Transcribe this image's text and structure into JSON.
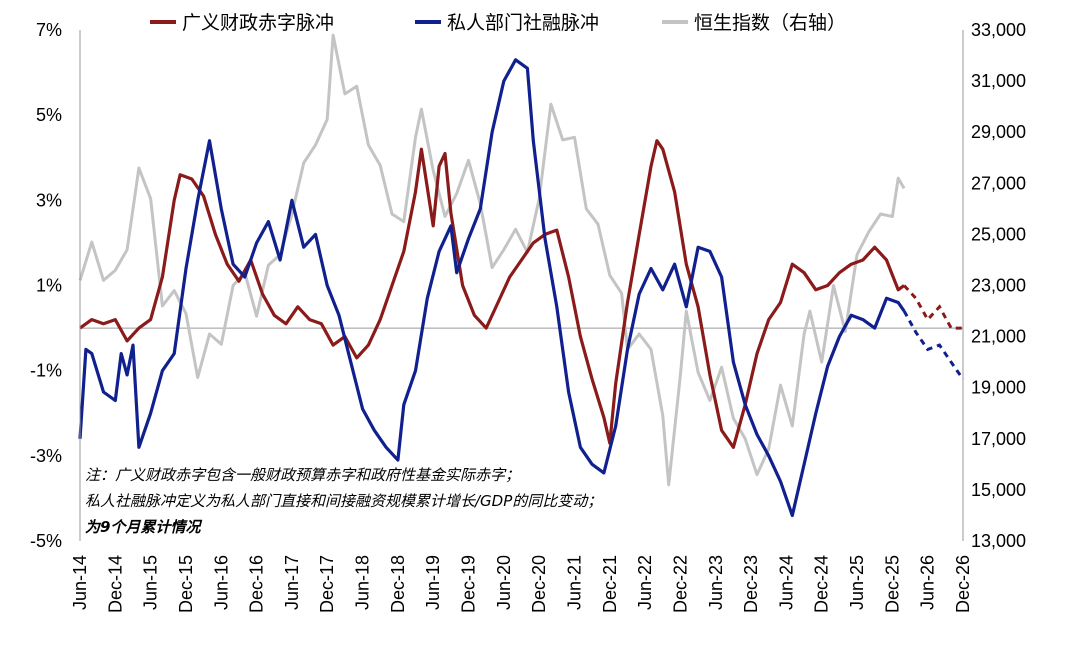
{
  "chart_data": {
    "type": "line",
    "legend": [
      {
        "name": "广义财政赤字脉冲",
        "color": "#8b1a1a"
      },
      {
        "name": "私人部门社融脉冲",
        "color": "#10208e"
      },
      {
        "name": "恒生指数（右轴）",
        "color": "#c4c4c4"
      }
    ],
    "y_left": {
      "min": -5,
      "max": 7,
      "ticks": [
        "7%",
        "5%",
        "3%",
        "1%",
        "-1%",
        "-3%",
        "-5%"
      ],
      "tick_values": [
        7,
        5,
        3,
        1,
        -1,
        -3,
        -5
      ]
    },
    "y_right": {
      "min": 13000,
      "max": 33000,
      "ticks": [
        "33,000",
        "31,000",
        "29,000",
        "27,000",
        "25,000",
        "23,000",
        "21,000",
        "19,000",
        "17,000",
        "15,000",
        "13,000"
      ],
      "tick_values": [
        33000,
        31000,
        29000,
        27000,
        25000,
        23000,
        21000,
        19000,
        17000,
        15000,
        13000
      ]
    },
    "x_labels": [
      "Jun-14",
      "Dec-14",
      "Jun-15",
      "Dec-15",
      "Jun-16",
      "Dec-16",
      "Jun-17",
      "Dec-17",
      "Jun-18",
      "Dec-18",
      "Jun-19",
      "Dec-19",
      "Jun-20",
      "Dec-20",
      "Jun-21",
      "Dec-21",
      "Jun-22",
      "Dec-22",
      "Jun-23",
      "Dec-23",
      "Jun-24",
      "Dec-24",
      "Jun-25",
      "Dec-25",
      "Jun-26",
      "Dec-26"
    ],
    "x_start": "2014-06",
    "series": [
      {
        "name": "广义财政赤字脉冲",
        "color": "#8b1a1a",
        "axis": "left",
        "points": [
          [
            "2014-06",
            0.0
          ],
          [
            "2014-08",
            0.2
          ],
          [
            "2014-10",
            0.1
          ],
          [
            "2014-12",
            0.2
          ],
          [
            "2015-02",
            -0.3
          ],
          [
            "2015-04",
            0.0
          ],
          [
            "2015-06",
            0.2
          ],
          [
            "2015-08",
            1.2
          ],
          [
            "2015-10",
            3.0
          ],
          [
            "2015-11",
            3.6
          ],
          [
            "2016-01",
            3.5
          ],
          [
            "2016-03",
            3.1
          ],
          [
            "2016-05",
            2.2
          ],
          [
            "2016-07",
            1.5
          ],
          [
            "2016-09",
            1.1
          ],
          [
            "2016-11",
            1.6
          ],
          [
            "2017-01",
            0.8
          ],
          [
            "2017-03",
            0.3
          ],
          [
            "2017-05",
            0.1
          ],
          [
            "2017-07",
            0.5
          ],
          [
            "2017-09",
            0.2
          ],
          [
            "2017-11",
            0.1
          ],
          [
            "2018-01",
            -0.4
          ],
          [
            "2018-03",
            -0.2
          ],
          [
            "2018-05",
            -0.7
          ],
          [
            "2018-07",
            -0.4
          ],
          [
            "2018-09",
            0.2
          ],
          [
            "2018-11",
            1.0
          ],
          [
            "2019-01",
            1.8
          ],
          [
            "2019-03",
            3.2
          ],
          [
            "2019-04",
            4.2
          ],
          [
            "2019-06",
            2.4
          ],
          [
            "2019-07",
            3.8
          ],
          [
            "2019-08",
            4.1
          ],
          [
            "2019-09",
            2.7
          ],
          [
            "2019-11",
            1.0
          ],
          [
            "2020-01",
            0.3
          ],
          [
            "2020-03",
            0.0
          ],
          [
            "2020-05",
            0.6
          ],
          [
            "2020-07",
            1.2
          ],
          [
            "2020-09",
            1.6
          ],
          [
            "2020-11",
            2.0
          ],
          [
            "2021-01",
            2.2
          ],
          [
            "2021-03",
            2.3
          ],
          [
            "2021-05",
            1.2
          ],
          [
            "2021-07",
            -0.2
          ],
          [
            "2021-09",
            -1.2
          ],
          [
            "2021-11",
            -2.1
          ],
          [
            "2021-12",
            -2.7
          ],
          [
            "2022-01",
            -1.3
          ],
          [
            "2022-03",
            0.6
          ],
          [
            "2022-05",
            2.2
          ],
          [
            "2022-07",
            3.8
          ],
          [
            "2022-08",
            4.4
          ],
          [
            "2022-09",
            4.2
          ],
          [
            "2022-11",
            3.2
          ],
          [
            "2023-01",
            1.5
          ],
          [
            "2023-03",
            0.5
          ],
          [
            "2023-05",
            -1.1
          ],
          [
            "2023-07",
            -2.4
          ],
          [
            "2023-09",
            -2.8
          ],
          [
            "2023-11",
            -1.8
          ],
          [
            "2024-01",
            -0.6
          ],
          [
            "2024-03",
            0.2
          ],
          [
            "2024-05",
            0.6
          ],
          [
            "2024-07",
            1.5
          ],
          [
            "2024-09",
            1.3
          ],
          [
            "2024-11",
            0.9
          ],
          [
            "2025-01",
            1.0
          ],
          [
            "2025-03",
            1.3
          ],
          [
            "2025-05",
            1.5
          ],
          [
            "2025-07",
            1.6
          ],
          [
            "2025-09",
            1.9
          ],
          [
            "2025-11",
            1.6
          ],
          [
            "2026-01",
            0.9
          ],
          [
            "2026-02",
            1.0
          ]
        ],
        "projection": [
          [
            "2026-02",
            1.0
          ],
          [
            "2026-04",
            0.7
          ],
          [
            "2026-06",
            0.2
          ],
          [
            "2026-08",
            0.5
          ],
          [
            "2026-10",
            0.0
          ],
          [
            "2026-12",
            0.0
          ]
        ]
      },
      {
        "name": "私人部门社融脉冲",
        "color": "#10208e",
        "axis": "left",
        "points": [
          [
            "2014-06",
            -2.6
          ],
          [
            "2014-07",
            -0.5
          ],
          [
            "2014-08",
            -0.6
          ],
          [
            "2014-10",
            -1.5
          ],
          [
            "2014-12",
            -1.7
          ],
          [
            "2015-01",
            -0.6
          ],
          [
            "2015-02",
            -1.1
          ],
          [
            "2015-03",
            -0.4
          ],
          [
            "2015-04",
            -2.8
          ],
          [
            "2015-06",
            -2.0
          ],
          [
            "2015-08",
            -1.0
          ],
          [
            "2015-10",
            -0.6
          ],
          [
            "2015-12",
            1.4
          ],
          [
            "2016-02",
            3.0
          ],
          [
            "2016-04",
            4.4
          ],
          [
            "2016-06",
            2.8
          ],
          [
            "2016-08",
            1.5
          ],
          [
            "2016-10",
            1.2
          ],
          [
            "2016-12",
            2.0
          ],
          [
            "2017-02",
            2.5
          ],
          [
            "2017-04",
            1.6
          ],
          [
            "2017-06",
            3.0
          ],
          [
            "2017-08",
            1.9
          ],
          [
            "2017-10",
            2.2
          ],
          [
            "2017-12",
            1.0
          ],
          [
            "2018-02",
            0.3
          ],
          [
            "2018-04",
            -0.8
          ],
          [
            "2018-06",
            -1.9
          ],
          [
            "2018-08",
            -2.4
          ],
          [
            "2018-10",
            -2.8
          ],
          [
            "2018-12",
            -3.1
          ],
          [
            "2019-01",
            -1.8
          ],
          [
            "2019-03",
            -1.0
          ],
          [
            "2019-05",
            0.7
          ],
          [
            "2019-07",
            1.8
          ],
          [
            "2019-09",
            2.4
          ],
          [
            "2019-10",
            1.3
          ],
          [
            "2019-12",
            2.1
          ],
          [
            "2020-02",
            2.8
          ],
          [
            "2020-04",
            4.6
          ],
          [
            "2020-06",
            5.8
          ],
          [
            "2020-08",
            6.3
          ],
          [
            "2020-10",
            6.1
          ],
          [
            "2020-11",
            4.4
          ],
          [
            "2021-01",
            2.1
          ],
          [
            "2021-03",
            0.5
          ],
          [
            "2021-05",
            -1.5
          ],
          [
            "2021-07",
            -2.8
          ],
          [
            "2021-09",
            -3.2
          ],
          [
            "2021-11",
            -3.4
          ],
          [
            "2022-01",
            -2.3
          ],
          [
            "2022-03",
            -0.5
          ],
          [
            "2022-05",
            0.8
          ],
          [
            "2022-07",
            1.4
          ],
          [
            "2022-09",
            0.9
          ],
          [
            "2022-11",
            1.5
          ],
          [
            "2023-01",
            0.5
          ],
          [
            "2023-03",
            1.9
          ],
          [
            "2023-05",
            1.8
          ],
          [
            "2023-07",
            1.2
          ],
          [
            "2023-09",
            -0.8
          ],
          [
            "2023-11",
            -1.8
          ],
          [
            "2024-01",
            -2.5
          ],
          [
            "2024-03",
            -3.0
          ],
          [
            "2024-05",
            -3.6
          ],
          [
            "2024-07",
            -4.4
          ],
          [
            "2024-09",
            -3.2
          ],
          [
            "2024-11",
            -2.0
          ],
          [
            "2025-01",
            -0.9
          ],
          [
            "2025-03",
            -0.2
          ],
          [
            "2025-05",
            0.3
          ],
          [
            "2025-07",
            0.2
          ],
          [
            "2025-09",
            0.0
          ],
          [
            "2025-11",
            0.7
          ],
          [
            "2026-01",
            0.6
          ],
          [
            "2026-02",
            0.4
          ]
        ],
        "projection": [
          [
            "2026-02",
            0.4
          ],
          [
            "2026-04",
            -0.1
          ],
          [
            "2026-06",
            -0.5
          ],
          [
            "2026-08",
            -0.4
          ],
          [
            "2026-10",
            -0.8
          ],
          [
            "2026-12",
            -1.2
          ]
        ]
      },
      {
        "name": "恒生指数（右轴）",
        "color": "#c4c4c4",
        "axis": "right",
        "points": [
          [
            "2014-06",
            23200
          ],
          [
            "2014-08",
            24700
          ],
          [
            "2014-10",
            23200
          ],
          [
            "2014-12",
            23600
          ],
          [
            "2015-02",
            24400
          ],
          [
            "2015-04",
            27600
          ],
          [
            "2015-06",
            26400
          ],
          [
            "2015-08",
            22200
          ],
          [
            "2015-10",
            22800
          ],
          [
            "2015-12",
            21900
          ],
          [
            "2016-02",
            19400
          ],
          [
            "2016-04",
            21100
          ],
          [
            "2016-06",
            20700
          ],
          [
            "2016-08",
            23000
          ],
          [
            "2016-10",
            23500
          ],
          [
            "2016-12",
            21800
          ],
          [
            "2017-02",
            23800
          ],
          [
            "2017-04",
            24200
          ],
          [
            "2017-06",
            25800
          ],
          [
            "2017-08",
            27800
          ],
          [
            "2017-10",
            28500
          ],
          [
            "2017-12",
            29500
          ],
          [
            "2018-01",
            32800
          ],
          [
            "2018-03",
            30500
          ],
          [
            "2018-05",
            30800
          ],
          [
            "2018-07",
            28500
          ],
          [
            "2018-09",
            27700
          ],
          [
            "2018-11",
            25800
          ],
          [
            "2019-01",
            25500
          ],
          [
            "2019-03",
            28800
          ],
          [
            "2019-04",
            29900
          ],
          [
            "2019-06",
            27500
          ],
          [
            "2019-08",
            25700
          ],
          [
            "2019-10",
            26600
          ],
          [
            "2019-12",
            27900
          ],
          [
            "2020-02",
            26200
          ],
          [
            "2020-04",
            23700
          ],
          [
            "2020-06",
            24400
          ],
          [
            "2020-08",
            25200
          ],
          [
            "2020-10",
            24300
          ],
          [
            "2020-12",
            26400
          ],
          [
            "2021-02",
            30100
          ],
          [
            "2021-04",
            28700
          ],
          [
            "2021-06",
            28800
          ],
          [
            "2021-08",
            26000
          ],
          [
            "2021-10",
            25400
          ],
          [
            "2021-12",
            23400
          ],
          [
            "2022-02",
            22700
          ],
          [
            "2022-03",
            20500
          ],
          [
            "2022-05",
            21100
          ],
          [
            "2022-07",
            20500
          ],
          [
            "2022-09",
            17900
          ],
          [
            "2022-10",
            15200
          ],
          [
            "2022-12",
            19500
          ],
          [
            "2023-01",
            22000
          ],
          [
            "2023-03",
            19600
          ],
          [
            "2023-05",
            18500
          ],
          [
            "2023-07",
            19800
          ],
          [
            "2023-09",
            17800
          ],
          [
            "2023-11",
            17000
          ],
          [
            "2024-01",
            15600
          ],
          [
            "2024-03",
            16600
          ],
          [
            "2024-05",
            19100
          ],
          [
            "2024-07",
            17500
          ],
          [
            "2024-09",
            21100
          ],
          [
            "2024-10",
            22000
          ],
          [
            "2024-12",
            20000
          ],
          [
            "2025-02",
            23000
          ],
          [
            "2025-04",
            21200
          ],
          [
            "2025-06",
            24200
          ],
          [
            "2025-08",
            25100
          ],
          [
            "2025-10",
            25800
          ],
          [
            "2025-12",
            25700
          ],
          [
            "2026-01",
            27200
          ],
          [
            "2026-02",
            26800
          ]
        ]
      }
    ],
    "zero_line": 0,
    "note": [
      "注：广义财政赤字包含一般财政预算赤字和政府性基金实际赤字；",
      "私人社融脉冲定义为私人部门直接和间接融资规模累计增长/GDP的同比变动；",
      "为9个月累计情况"
    ]
  }
}
